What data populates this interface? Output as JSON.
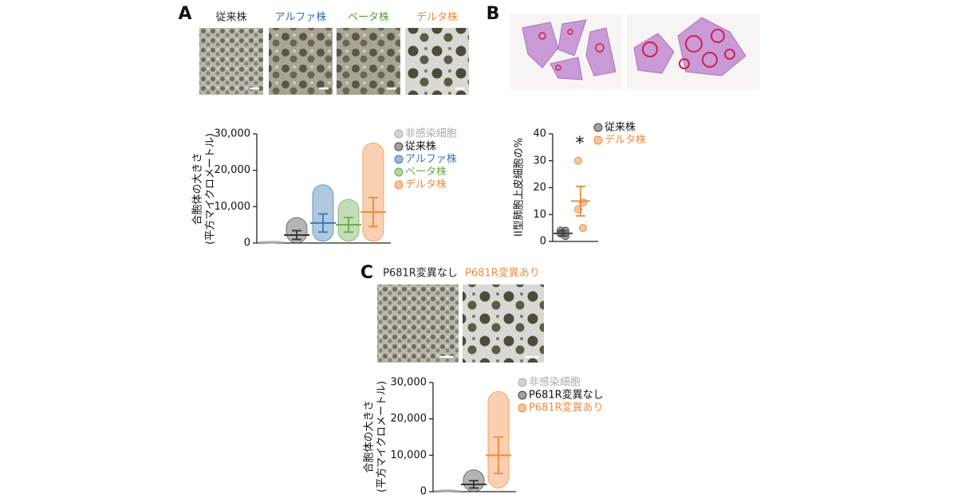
{
  "panels": [
    {
      "label": "A",
      "images": [
        {
          "caption": "従来株",
          "color": "#222222"
        },
        {
          "caption": "アルファ株",
          "color": "#2f6fb0"
        },
        {
          "caption": "ベータ株",
          "color": "#5a9e3a"
        },
        {
          "caption": "デルタ株",
          "color": "#f08a3c"
        }
      ]
    },
    {
      "label": "B"
    },
    {
      "label": "C",
      "images": [
        {
          "caption": "P681R変異なし",
          "color": "#222222"
        },
        {
          "caption": "P681R変異あり",
          "color": "#f08a3c"
        }
      ]
    }
  ],
  "chart_data": [
    {
      "type": "strip",
      "ylabel": [
        "合胞体の大きさ",
        "(平方マイクロメートル)"
      ],
      "ylim": [
        0,
        30000
      ],
      "yticks": [
        0,
        {
          "value": 10000,
          "label": "10,000"
        },
        {
          "value": 20000,
          "label": "20,000"
        },
        {
          "value": 30000,
          "label": "30,000"
        }
      ],
      "series": [
        {
          "name": "非感染細胞",
          "color": "#aaaaaa",
          "mean": 200,
          "sd": 100,
          "min": 0,
          "max": 500
        },
        {
          "name": "従来株",
          "color": "#444444",
          "mean": 2200,
          "sd": 1200,
          "min": 0,
          "max": 7000
        },
        {
          "name": "アルファ株",
          "color": "#3a78b5",
          "mean": 5500,
          "sd": 2500,
          "min": 500,
          "max": 16000
        },
        {
          "name": "ベータ株",
          "color": "#6aaa4a",
          "mean": 5000,
          "sd": 2000,
          "min": 500,
          "max": 12000
        },
        {
          "name": "デルタ株",
          "color": "#f08a3c",
          "mean": 8500,
          "sd": 4000,
          "min": 500,
          "max": 27500
        }
      ]
    },
    {
      "type": "strip",
      "ylabel": [
        "II型肺胞上皮細胞の%"
      ],
      "annotation": "*",
      "ylim": [
        0,
        40
      ],
      "yticks": [
        0,
        10,
        20,
        30,
        40
      ],
      "series": [
        {
          "name": "従来株",
          "color": "#444444",
          "values": [
            4,
            2,
            3,
            4
          ],
          "mean": 3,
          "sd": 1
        },
        {
          "name": "デルタ株",
          "color": "#f08a3c",
          "values": [
            30,
            14.5,
            12,
            5
          ],
          "mean": 15,
          "sd": 5.5
        }
      ]
    },
    {
      "type": "strip",
      "ylabel": [
        "合胞体の大きさ",
        "(平方マイクロメートル)"
      ],
      "ylim": [
        0,
        30000
      ],
      "yticks": [
        0,
        {
          "value": 10000,
          "label": "10,000"
        },
        {
          "value": 20000,
          "label": "20,000"
        },
        {
          "value": 30000,
          "label": "30,000"
        }
      ],
      "series": [
        {
          "name": "非感染細胞",
          "color": "#aaaaaa",
          "mean": 200,
          "sd": 100,
          "min": 0,
          "max": 500
        },
        {
          "name": "P681R変異なし",
          "color": "#444444",
          "mean": 2000,
          "sd": 1000,
          "min": 0,
          "max": 6000
        },
        {
          "name": "P681R変異あり",
          "color": "#f08a3c",
          "mean": 10000,
          "sd": 5000,
          "min": 1000,
          "max": 27500
        }
      ]
    }
  ]
}
